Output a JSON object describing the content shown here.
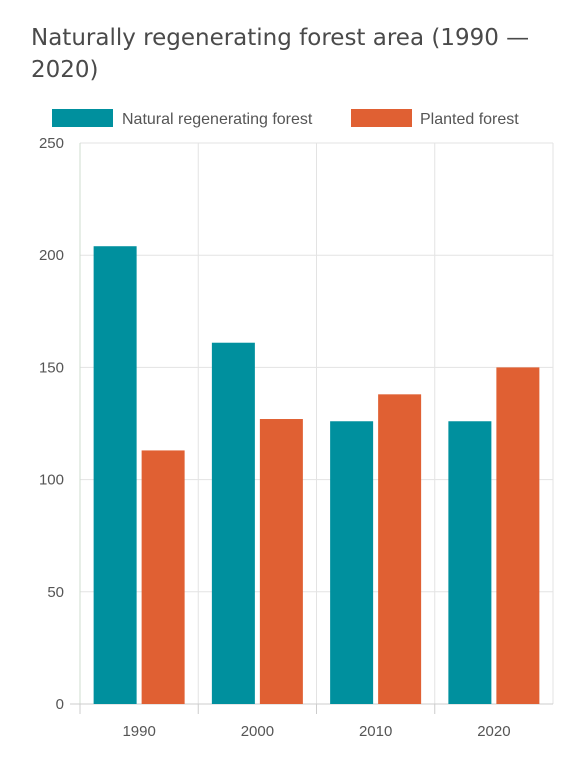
{
  "chart_data": {
    "type": "bar",
    "title": "Naturally regenerating forest area (1990 — 2020)",
    "categories": [
      "1990",
      "2000",
      "2010",
      "2020"
    ],
    "series": [
      {
        "name": "Natural regenerating forest",
        "color": "#00909e",
        "values": [
          204,
          161,
          126,
          126
        ]
      },
      {
        "name": "Planted forest",
        "color": "#e06033",
        "values": [
          113,
          127,
          138,
          150
        ]
      }
    ],
    "ylim": [
      0,
      250
    ],
    "yticks": [
      0,
      50,
      100,
      150,
      200,
      250
    ],
    "xlabel": "",
    "ylabel": "",
    "grid": true,
    "legend_position": "top"
  }
}
